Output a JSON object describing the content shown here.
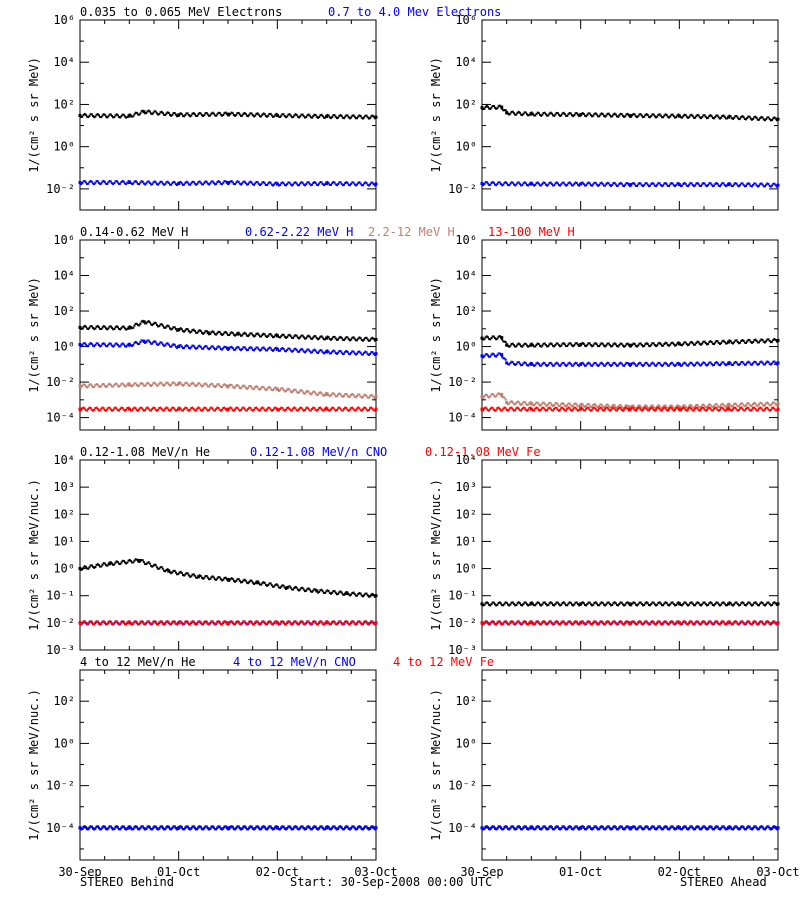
{
  "colors": {
    "black": "#000000",
    "blue": "#0000ff",
    "brown": "#c08070",
    "red": "#ff0000"
  },
  "footer": {
    "left": "STEREO Behind",
    "center": "Start: 30-Sep-2008 00:00 UTC",
    "right": "STEREO Ahead"
  },
  "x_ticks": [
    "30-Sep",
    "01-Oct",
    "02-Oct",
    "03-Oct"
  ],
  "chart_data": [
    {
      "type": "scatter",
      "panel": "electrons-behind",
      "ylabel": "1/(cm² s sr MeV)",
      "yscale": "log",
      "ylim": [
        0.001,
        1000000
      ],
      "yticks": [
        0.01,
        1,
        100,
        10000,
        1000000
      ],
      "ytick_labels": [
        "10⁻²",
        "10⁰",
        "10²",
        "10⁴",
        "10⁶"
      ],
      "xlim": [
        0,
        3
      ],
      "x_unit": "days since 30-Sep-2008 00:00 UTC",
      "series": [
        {
          "name": "0.035 to 0.065 MeV Electrons",
          "color": "#000000",
          "x": [
            0,
            0.5,
            0.65,
            1,
            1.5,
            2,
            2.5,
            3
          ],
          "values": [
            30,
            28,
            45,
            32,
            35,
            30,
            27,
            25
          ]
        },
        {
          "name": "0.7 to 4.0 Mev Electrons",
          "color": "#0000ff",
          "x": [
            0,
            0.5,
            1,
            1.5,
            2,
            2.5,
            3
          ],
          "values": [
            0.02,
            0.02,
            0.018,
            0.02,
            0.017,
            0.018,
            0.017
          ]
        }
      ]
    },
    {
      "type": "scatter",
      "panel": "electrons-ahead",
      "ylabel": "1/(cm² s sr MeV)",
      "yscale": "log",
      "ylim": [
        0.001,
        1000000
      ],
      "yticks": [
        0.01,
        1,
        100,
        10000,
        1000000
      ],
      "ytick_labels": [
        "10⁻²",
        "10⁰",
        "10²",
        "10⁴",
        "10⁶"
      ],
      "xlim": [
        0,
        3
      ],
      "series": [
        {
          "name": "0.035 to 0.065 MeV Electrons",
          "color": "#000000",
          "x": [
            0,
            0.2,
            0.25,
            0.5,
            1,
            1.5,
            2,
            2.5,
            3
          ],
          "values": [
            70,
            75,
            40,
            35,
            33,
            30,
            28,
            25,
            20
          ]
        },
        {
          "name": "0.7 to 4.0 Mev Electrons",
          "color": "#0000ff",
          "x": [
            0,
            0.5,
            1,
            1.5,
            2,
            2.5,
            3
          ],
          "values": [
            0.018,
            0.017,
            0.017,
            0.016,
            0.016,
            0.016,
            0.015
          ]
        }
      ]
    },
    {
      "type": "scatter",
      "panel": "protons-behind",
      "ylabel": "1/(cm² s sr MeV)",
      "yscale": "log",
      "ylim": [
        2e-05,
        1000000
      ],
      "yticks": [
        0.0001,
        0.01,
        1,
        100,
        10000,
        1000000
      ],
      "ytick_labels": [
        "10⁻⁴",
        "10⁻²",
        "10⁰",
        "10²",
        "10⁴",
        "10⁶"
      ],
      "xlim": [
        0,
        3
      ],
      "series": [
        {
          "name": "0.14-0.62 MeV H",
          "color": "#000000",
          "x": [
            0,
            0.5,
            0.65,
            1,
            1.3,
            1.6,
            2,
            2.5,
            3
          ],
          "values": [
            12,
            11,
            25,
            9,
            6,
            5,
            4,
            3,
            2.5
          ]
        },
        {
          "name": "0.62-2.22 MeV H",
          "color": "#0000ff",
          "x": [
            0,
            0.5,
            0.65,
            1,
            1.5,
            2,
            2.5,
            3
          ],
          "values": [
            1.3,
            1.2,
            2,
            1,
            0.8,
            0.7,
            0.5,
            0.4
          ]
        },
        {
          "name": "2.2-12 MeV H",
          "color": "#c08070",
          "x": [
            0,
            0.5,
            1,
            1.5,
            2,
            2.5,
            3
          ],
          "values": [
            0.006,
            0.007,
            0.008,
            0.006,
            0.004,
            0.002,
            0.0015
          ]
        },
        {
          "name": "13-100 MeV H",
          "color": "#ff0000",
          "x": [
            0,
            0.5,
            1,
            1.5,
            2,
            2.5,
            3
          ],
          "values": [
            0.0003,
            0.0003,
            0.0003,
            0.0003,
            0.0003,
            0.0003,
            0.0003
          ]
        }
      ]
    },
    {
      "type": "scatter",
      "panel": "protons-ahead",
      "ylabel": "1/(cm² s sr MeV)",
      "yscale": "log",
      "ylim": [
        2e-05,
        1000000
      ],
      "yticks": [
        0.0001,
        0.01,
        1,
        100,
        10000,
        1000000
      ],
      "ytick_labels": [
        "10⁻⁴",
        "10⁻²",
        "10⁰",
        "10²",
        "10⁴",
        "10⁶"
      ],
      "xlim": [
        0,
        3
      ],
      "series": [
        {
          "name": "0.14-0.62 MeV H",
          "color": "#000000",
          "x": [
            0,
            0.2,
            0.25,
            0.5,
            1,
            1.5,
            2,
            2.5,
            3
          ],
          "values": [
            3,
            3.2,
            1.2,
            1.2,
            1.3,
            1.2,
            1.4,
            1.8,
            2.2
          ]
        },
        {
          "name": "0.62-2.22 MeV H",
          "color": "#0000ff",
          "x": [
            0,
            0.2,
            0.25,
            0.5,
            1,
            1.5,
            2,
            2.5,
            3
          ],
          "values": [
            0.3,
            0.35,
            0.12,
            0.1,
            0.1,
            0.1,
            0.1,
            0.11,
            0.12
          ]
        },
        {
          "name": "2.2-12 MeV H",
          "color": "#c08070",
          "x": [
            0,
            0.2,
            0.25,
            0.5,
            1,
            1.5,
            2,
            2.5,
            3
          ],
          "values": [
            0.0015,
            0.002,
            0.0007,
            0.0006,
            0.0005,
            0.0004,
            0.0004,
            0.0005,
            0.0006
          ]
        },
        {
          "name": "13-100 MeV H",
          "color": "#ff0000",
          "x": [
            0,
            0.5,
            1,
            1.5,
            2,
            2.5,
            3
          ],
          "values": [
            0.0003,
            0.0003,
            0.0003,
            0.0003,
            0.0003,
            0.0003,
            0.0003
          ]
        }
      ]
    },
    {
      "type": "scatter",
      "panel": "heavy-low-behind",
      "ylabel": "1/(cm² s sr MeV/nuc.)",
      "yscale": "log",
      "ylim": [
        0.001,
        10000
      ],
      "yticks": [
        0.001,
        0.01,
        0.1,
        1,
        10,
        100,
        1000,
        10000
      ],
      "ytick_labels": [
        "10⁻³",
        "10⁻²",
        "10⁻¹",
        "10⁰",
        "10¹",
        "10²",
        "10³",
        "10⁴"
      ],
      "xlim": [
        0,
        3
      ],
      "series": [
        {
          "name": "0.12-1.08 MeV/n He",
          "color": "#000000",
          "x": [
            0,
            0.3,
            0.6,
            0.9,
            1.2,
            1.5,
            1.8,
            2.1,
            2.4,
            2.7,
            3
          ],
          "values": [
            1,
            1.5,
            2,
            0.8,
            0.5,
            0.4,
            0.3,
            0.2,
            0.15,
            0.12,
            0.1
          ]
        },
        {
          "name": "0.12-1.08 MeV/n CNO",
          "color": "#0000ff",
          "x": [
            0,
            0.5,
            1,
            1.5,
            2,
            2.5,
            3
          ],
          "values": [
            0.01,
            0.01,
            0.01,
            0.01,
            0.01,
            0.01,
            0.01
          ]
        },
        {
          "name": "0.12-1.08 MeV Fe",
          "color": "#ff0000",
          "x": [
            0,
            0.5,
            1,
            1.5,
            2,
            2.5,
            3
          ],
          "values": [
            0.01,
            0.01,
            0.01,
            0.01,
            0.01,
            0.01,
            0.01
          ]
        }
      ]
    },
    {
      "type": "scatter",
      "panel": "heavy-low-ahead",
      "ylabel": "1/(cm² s sr MeV/nuc.)",
      "yscale": "log",
      "ylim": [
        0.001,
        10000
      ],
      "yticks": [
        0.001,
        0.01,
        0.1,
        1,
        10,
        100,
        1000,
        10000
      ],
      "ytick_labels": [
        "10⁻³",
        "10⁻²",
        "10⁻¹",
        "10⁰",
        "10¹",
        "10²",
        "10³",
        "10⁴"
      ],
      "xlim": [
        0,
        3
      ],
      "series": [
        {
          "name": "0.12-1.08 MeV/n He",
          "color": "#000000",
          "x": [
            0,
            0.5,
            1,
            1.5,
            2,
            2.5,
            3
          ],
          "values": [
            0.05,
            0.05,
            0.05,
            0.05,
            0.05,
            0.05,
            0.05
          ]
        },
        {
          "name": "0.12-1.08 MeV/n CNO",
          "color": "#0000ff",
          "x": [
            0,
            0.5,
            1,
            1.5,
            2,
            2.5,
            3
          ],
          "values": [
            0.01,
            0.01,
            0.01,
            0.01,
            0.01,
            0.01,
            0.01
          ]
        },
        {
          "name": "0.12-1.08 MeV Fe",
          "color": "#ff0000",
          "x": [
            0,
            0.5,
            1,
            1.5,
            2,
            2.5,
            3
          ],
          "values": [
            0.01,
            0.01,
            0.01,
            0.01,
            0.01,
            0.01,
            0.01
          ]
        }
      ]
    },
    {
      "type": "scatter",
      "panel": "heavy-high-behind",
      "ylabel": "1/(cm² s sr MeV/nuc.)",
      "yscale": "log",
      "ylim": [
        3e-06,
        3000
      ],
      "yticks": [
        0.0001,
        0.01,
        1,
        100
      ],
      "ytick_labels": [
        "10⁻⁴",
        "10⁻²",
        "10⁰",
        "10²"
      ],
      "xlim": [
        0,
        3
      ],
      "series": [
        {
          "name": "4 to 12 MeV/n He",
          "color": "#000000",
          "x": [
            0,
            0.5,
            1,
            1.5,
            2,
            2.5,
            3
          ],
          "values": [
            0.0001,
            0.0001,
            0.0001,
            0.0001,
            0.0001,
            0.0001,
            0.0001
          ]
        },
        {
          "name": "4 to 12 MeV/n CNO",
          "color": "#0000ff",
          "x": [
            0,
            0.5,
            1,
            1.5,
            2,
            2.5,
            3
          ],
          "values": [
            0.0001,
            0.0001,
            0.0001,
            0.0001,
            0.0001,
            0.0001,
            0.0001
          ]
        },
        {
          "name": "4 to 12 MeV Fe",
          "color": "#ff0000",
          "x": [],
          "values": []
        }
      ]
    },
    {
      "type": "scatter",
      "panel": "heavy-high-ahead",
      "ylabel": "1/(cm² s sr MeV/nuc.)",
      "yscale": "log",
      "ylim": [
        3e-06,
        3000
      ],
      "yticks": [
        0.0001,
        0.01,
        1,
        100
      ],
      "ytick_labels": [
        "10⁻⁴",
        "10⁻²",
        "10⁰",
        "10²"
      ],
      "xlim": [
        0,
        3
      ],
      "series": [
        {
          "name": "4 to 12 MeV/n He",
          "color": "#000000",
          "x": [
            0,
            0.5,
            1,
            1.5,
            2,
            2.5,
            3
          ],
          "values": [
            0.0001,
            0.0001,
            0.0001,
            0.0001,
            0.0001,
            0.0001,
            0.0001
          ]
        },
        {
          "name": "4 to 12 MeV/n CNO",
          "color": "#0000ff",
          "x": [
            0,
            0.5,
            1,
            1.5,
            2,
            2.5,
            3
          ],
          "values": [
            0.0001,
            0.0001,
            0.0001,
            0.0001,
            0.0001,
            0.0001,
            0.0001
          ]
        },
        {
          "name": "4 to 12 MeV Fe",
          "color": "#ff0000",
          "x": [],
          "values": []
        }
      ]
    }
  ]
}
